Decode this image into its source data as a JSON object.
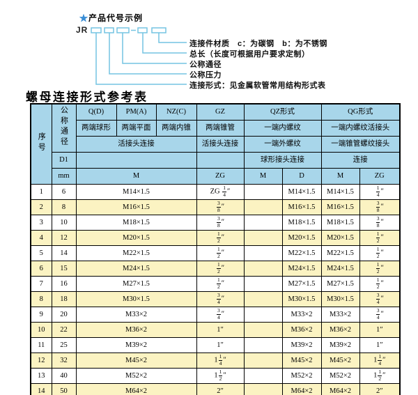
{
  "colors": {
    "header_blue": "#a8d6ea",
    "row_yellow": "#fbf3c2",
    "line_blue": "#74c4e2",
    "star_blue": "#3a8ed6"
  },
  "diagram": {
    "star": "★",
    "heading": "产品代号示例",
    "code_prefix": "JR",
    "labels": [
      "连接件材质　c：为碳钢　b：为不锈钢",
      "总长（长度可根据用户要求定制）",
      "公称通径",
      "公称压力",
      "连接形式：见金属软管常用结构形式表"
    ]
  },
  "table": {
    "title": "螺母连接形式参考表",
    "header": {
      "seq": "序号",
      "dn": "公称通径",
      "d1": "D1",
      "mm": "mm",
      "q1": "Q(D)",
      "q2": "两端球形",
      "pm1": "PM(A)",
      "pm2": "两端平面",
      "nz1": "NZ(C)",
      "nz2": "两端内锥",
      "gz1": "GZ",
      "gz2": "两端锥管",
      "gz3": "活接头连接",
      "gz_unit": "ZG",
      "qpmnz3": "活接头连接",
      "qpmnz_unit": "M",
      "qz1": "QZ形式",
      "qz2": "一端内螺纹",
      "qz3": "一端外螺纹",
      "qz4": "球形接头连接",
      "qz_m": "M",
      "qz_d": "D",
      "qg1": "QG形式",
      "qg2": "一端内螺纹活接头",
      "qg3": "一端锥管螺纹接头",
      "qg4": "连接",
      "qg_m": "M",
      "qg_zg": "ZG"
    },
    "rows": [
      {
        "no": "1",
        "dn": "6",
        "m": "M14×1.5",
        "gz": "ZG {1/4}″",
        "qz_m": "",
        "qz_d": "M14×1.5",
        "qg_m": "M14×1.5",
        "qg_zg": "{1/4}″"
      },
      {
        "no": "2",
        "dn": "8",
        "m": "M16×1.5",
        "gz": "{3/8}″",
        "qz_m": "",
        "qz_d": "M16×1.5",
        "qg_m": "M16×1.5",
        "qg_zg": "{3/8}″"
      },
      {
        "no": "3",
        "dn": "10",
        "m": "M18×1.5",
        "gz": "{3/8}″",
        "qz_m": "",
        "qz_d": "M18×1.5",
        "qg_m": "M18×1.5",
        "qg_zg": "{3/8}″"
      },
      {
        "no": "4",
        "dn": "12",
        "m": "M20×1.5",
        "gz": "{1/2}″",
        "qz_m": "",
        "qz_d": "M20×1.5",
        "qg_m": "M20×1.5",
        "qg_zg": "{1/2}″"
      },
      {
        "no": "5",
        "dn": "14",
        "m": "M22×1.5",
        "gz": "{1/2}″",
        "qz_m": "",
        "qz_d": "M22×1.5",
        "qg_m": "M22×1.5",
        "qg_zg": "{1/2}″"
      },
      {
        "no": "6",
        "dn": "15",
        "m": "M24×1.5",
        "gz": "{1/2}″",
        "qz_m": "",
        "qz_d": "M24×1.5",
        "qg_m": "M24×1.5",
        "qg_zg": "{1/2}″"
      },
      {
        "no": "7",
        "dn": "16",
        "m": "M27×1.5",
        "gz": "{1/2}″",
        "qz_m": "",
        "qz_d": "M27×1.5",
        "qg_m": "M27×1.5",
        "qg_zg": "{1/2}″"
      },
      {
        "no": "8",
        "dn": "18",
        "m": "M30×1.5",
        "gz": "{3/4}″",
        "qz_m": "",
        "qz_d": "M30×1.5",
        "qg_m": "M30×1.5",
        "qg_zg": "{3/4}″"
      },
      {
        "no": "9",
        "dn": "20",
        "m": "M33×2",
        "gz": "{3/4}″",
        "qz_m": "",
        "qz_d": "M33×2",
        "qg_m": "M33×2",
        "qg_zg": "{3/4}″"
      },
      {
        "no": "10",
        "dn": "22",
        "m": "M36×2",
        "gz": "1″",
        "qz_m": "",
        "qz_d": "M36×2",
        "qg_m": "M36×2",
        "qg_zg": "1″"
      },
      {
        "no": "11",
        "dn": "25",
        "m": "M39×2",
        "gz": "1″",
        "qz_m": "",
        "qz_d": "M39×2",
        "qg_m": "M39×2",
        "qg_zg": "1″"
      },
      {
        "no": "12",
        "dn": "32",
        "m": "M45×2",
        "gz": "1{1/4}″",
        "qz_m": "",
        "qz_d": "M45×2",
        "qg_m": "M45×2",
        "qg_zg": "1{1/4}″"
      },
      {
        "no": "13",
        "dn": "40",
        "m": "M52×2",
        "gz": "1{1/2}″",
        "qz_m": "",
        "qz_d": "M52×2",
        "qg_m": "M52×2",
        "qg_zg": "1{1/2}″"
      },
      {
        "no": "14",
        "dn": "50",
        "m": "M64×2",
        "gz": "2″",
        "qz_m": "",
        "qz_d": "M64×2",
        "qg_m": "M64×2",
        "qg_zg": "2″"
      }
    ]
  }
}
